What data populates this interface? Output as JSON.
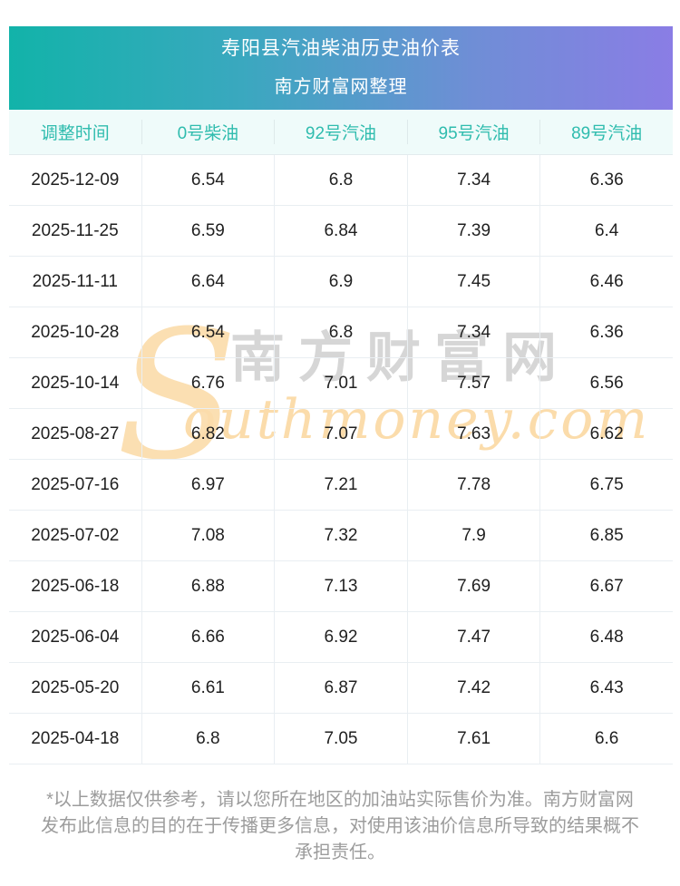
{
  "banner": {
    "title": "寿阳县汽油柴油历史油价表",
    "subtitle": "南方财富网整理",
    "gradient_left": "#12b3a9",
    "gradient_right": "#8a7de5"
  },
  "table": {
    "header_bg": "#effbfa",
    "header_text_color": "#2fbcae",
    "columns": [
      "调整时间",
      "0号柴油",
      "92号汽油",
      "95号汽油",
      "89号汽油"
    ],
    "rows": [
      {
        "cells": [
          "2025-12-09",
          "6.54",
          "6.8",
          "7.34",
          "6.36"
        ]
      },
      {
        "cells": [
          "2025-11-25",
          "6.59",
          "6.84",
          "7.39",
          "6.4"
        ]
      },
      {
        "cells": [
          "2025-11-11",
          "6.64",
          "6.9",
          "7.45",
          "6.46"
        ]
      },
      {
        "cells": [
          "2025-10-28",
          "6.54",
          "6.8",
          "7.34",
          "6.36"
        ]
      },
      {
        "cells": [
          "2025-10-14",
          "6.76",
          "7.01",
          "7.57",
          "6.56"
        ]
      },
      {
        "cells": [
          "2025-08-27",
          "6.82",
          "7.07",
          "7.63",
          "6.62"
        ]
      },
      {
        "cells": [
          "2025-07-16",
          "6.97",
          "7.21",
          "7.78",
          "6.75"
        ]
      },
      {
        "cells": [
          "2025-07-02",
          "7.08",
          "7.32",
          "7.9",
          "6.85"
        ]
      },
      {
        "cells": [
          "2025-06-18",
          "6.88",
          "7.13",
          "7.69",
          "6.67"
        ]
      },
      {
        "cells": [
          "2025-06-04",
          "6.66",
          "6.92",
          "7.47",
          "6.48"
        ]
      },
      {
        "cells": [
          "2025-05-20",
          "6.61",
          "6.87",
          "7.42",
          "6.43"
        ]
      },
      {
        "cells": [
          "2025-04-18",
          "6.8",
          "7.05",
          "7.61",
          "6.6"
        ]
      }
    ]
  },
  "watermark": {
    "s_glyph": "S",
    "cn_text": "南方财富网",
    "latin_text": "outhmoney.com",
    "orange": "#fbdcab",
    "gray": "#d6d6d6"
  },
  "disclaimer": {
    "text": "*以上数据仅供参考，请以您所在地区的加油站实际售价为准。南方财富网发布此信息的目的在于传播更多信息，对使用该油价信息所导致的结果概不承担责任。"
  },
  "chart_data": {
    "type": "table",
    "title": "寿阳县汽油柴油历史油价表",
    "subtitle": "南方财富网整理",
    "columns": [
      "调整时间",
      "0号柴油",
      "92号汽油",
      "95号汽油",
      "89号汽油"
    ],
    "rows": [
      [
        "2025-12-09",
        6.54,
        6.8,
        7.34,
        6.36
      ],
      [
        "2025-11-25",
        6.59,
        6.84,
        7.39,
        6.4
      ],
      [
        "2025-11-11",
        6.64,
        6.9,
        7.45,
        6.46
      ],
      [
        "2025-10-28",
        6.54,
        6.8,
        7.34,
        6.36
      ],
      [
        "2025-10-14",
        6.76,
        7.01,
        7.57,
        6.56
      ],
      [
        "2025-08-27",
        6.82,
        7.07,
        7.63,
        6.62
      ],
      [
        "2025-07-16",
        6.97,
        7.21,
        7.78,
        6.75
      ],
      [
        "2025-07-02",
        7.08,
        7.32,
        7.9,
        6.85
      ],
      [
        "2025-06-18",
        6.88,
        7.13,
        7.69,
        6.67
      ],
      [
        "2025-06-04",
        6.66,
        6.92,
        7.47,
        6.48
      ],
      [
        "2025-05-20",
        6.61,
        6.87,
        7.42,
        6.43
      ],
      [
        "2025-04-18",
        6.8,
        7.05,
        7.61,
        6.6
      ]
    ]
  }
}
